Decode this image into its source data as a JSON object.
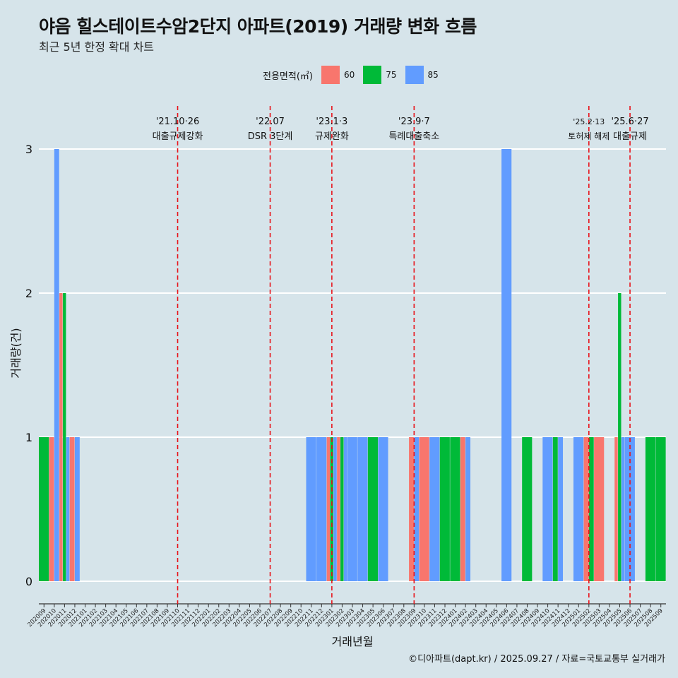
{
  "title": "야음 힐스테이트수암2단지 아파트(2019) 거래량 변화 흐름",
  "subtitle": "최근 5년 한정 확대 차트",
  "caption": "©디아파트(dapt.kr) / 2025.09.27 / 자료=국토교통부 실거래가",
  "legend": {
    "title": "전용면적(㎡)",
    "items": [
      {
        "label": "60",
        "color": "#F8766D"
      },
      {
        "label": "75",
        "color": "#00BA38"
      },
      {
        "label": "85",
        "color": "#619CFF"
      }
    ]
  },
  "chart_data": {
    "type": "bar",
    "title": "야음 힐스테이트수암2단지 아파트(2019) 거래량 변화 흐름",
    "xlabel": "거래년월",
    "ylabel": "거래량(건)",
    "ylim": [
      0,
      3
    ],
    "yticks": [
      "0",
      "1",
      "2",
      "3"
    ],
    "categories": [
      "202009",
      "202010",
      "202011",
      "202012",
      "202101",
      "202102",
      "202103",
      "202104",
      "202105",
      "202106",
      "202107",
      "202108",
      "202109",
      "202110",
      "202111",
      "202112",
      "202201",
      "202202",
      "202203",
      "202204",
      "202205",
      "202206",
      "202207",
      "202208",
      "202209",
      "202210",
      "202211",
      "202212",
      "202301",
      "202302",
      "202303",
      "202304",
      "202305",
      "202306",
      "202307",
      "202308",
      "202309",
      "202310",
      "202311",
      "202312",
      "202401",
      "202402",
      "202403",
      "202404",
      "202405",
      "202406",
      "202407",
      "202408",
      "202409",
      "202410",
      "202411",
      "202412",
      "202501",
      "202502",
      "202503",
      "202504",
      "202505",
      "202506",
      "202507",
      "202508",
      "202509"
    ],
    "series": [
      {
        "name": "60",
        "color": "#F8766D",
        "values": [
          0,
          1,
          2,
          1,
          0,
          0,
          0,
          0,
          0,
          0,
          0,
          0,
          0,
          0,
          0,
          0,
          0,
          0,
          0,
          0,
          0,
          0,
          0,
          0,
          0,
          0,
          0,
          0,
          1,
          1,
          0,
          0,
          0,
          0,
          0,
          0,
          1,
          1,
          0,
          0,
          0,
          1,
          0,
          0,
          0,
          0,
          0,
          0,
          0,
          0,
          0,
          0,
          0,
          1,
          1,
          0,
          1,
          0,
          0,
          0,
          0
        ]
      },
      {
        "name": "75",
        "color": "#00BA38",
        "values": [
          1,
          0,
          2,
          0,
          0,
          0,
          0,
          0,
          0,
          0,
          0,
          0,
          0,
          0,
          0,
          0,
          0,
          0,
          0,
          0,
          0,
          0,
          0,
          0,
          0,
          0,
          0,
          0,
          1,
          1,
          0,
          0,
          1,
          0,
          0,
          0,
          0,
          0,
          0,
          1,
          1,
          0,
          0,
          0,
          0,
          0,
          0,
          1,
          0,
          0,
          1,
          0,
          0,
          1,
          0,
          0,
          2,
          0,
          0,
          1,
          1
        ]
      },
      {
        "name": "85",
        "color": "#619CFF",
        "values": [
          0,
          3,
          1,
          1,
          0,
          0,
          0,
          0,
          0,
          0,
          0,
          0,
          0,
          0,
          0,
          0,
          0,
          0,
          0,
          0,
          0,
          0,
          0,
          0,
          0,
          0,
          1,
          1,
          1,
          1,
          1,
          1,
          0,
          1,
          0,
          0,
          1,
          0,
          1,
          0,
          0,
          1,
          0,
          0,
          0,
          3,
          0,
          0,
          0,
          1,
          1,
          0,
          1,
          0,
          0,
          0,
          1,
          1,
          0,
          0,
          0
        ]
      }
    ],
    "events": [
      {
        "date": "'21.10·26",
        "label": "대출규제강화",
        "month": "202110"
      },
      {
        "date": "'22.07",
        "label": "DSR 3단계",
        "month": "202207"
      },
      {
        "date": "'23.1·3",
        "label": "규제완화",
        "month": "202301"
      },
      {
        "date": "'23.9·7",
        "label": "특례대출축소",
        "month": "202309"
      },
      {
        "date": "'25.2·13",
        "label": "토허제 해제",
        "month": "202502"
      },
      {
        "date": "'25.6·27",
        "label": "대출규제",
        "month": "202506"
      }
    ]
  }
}
